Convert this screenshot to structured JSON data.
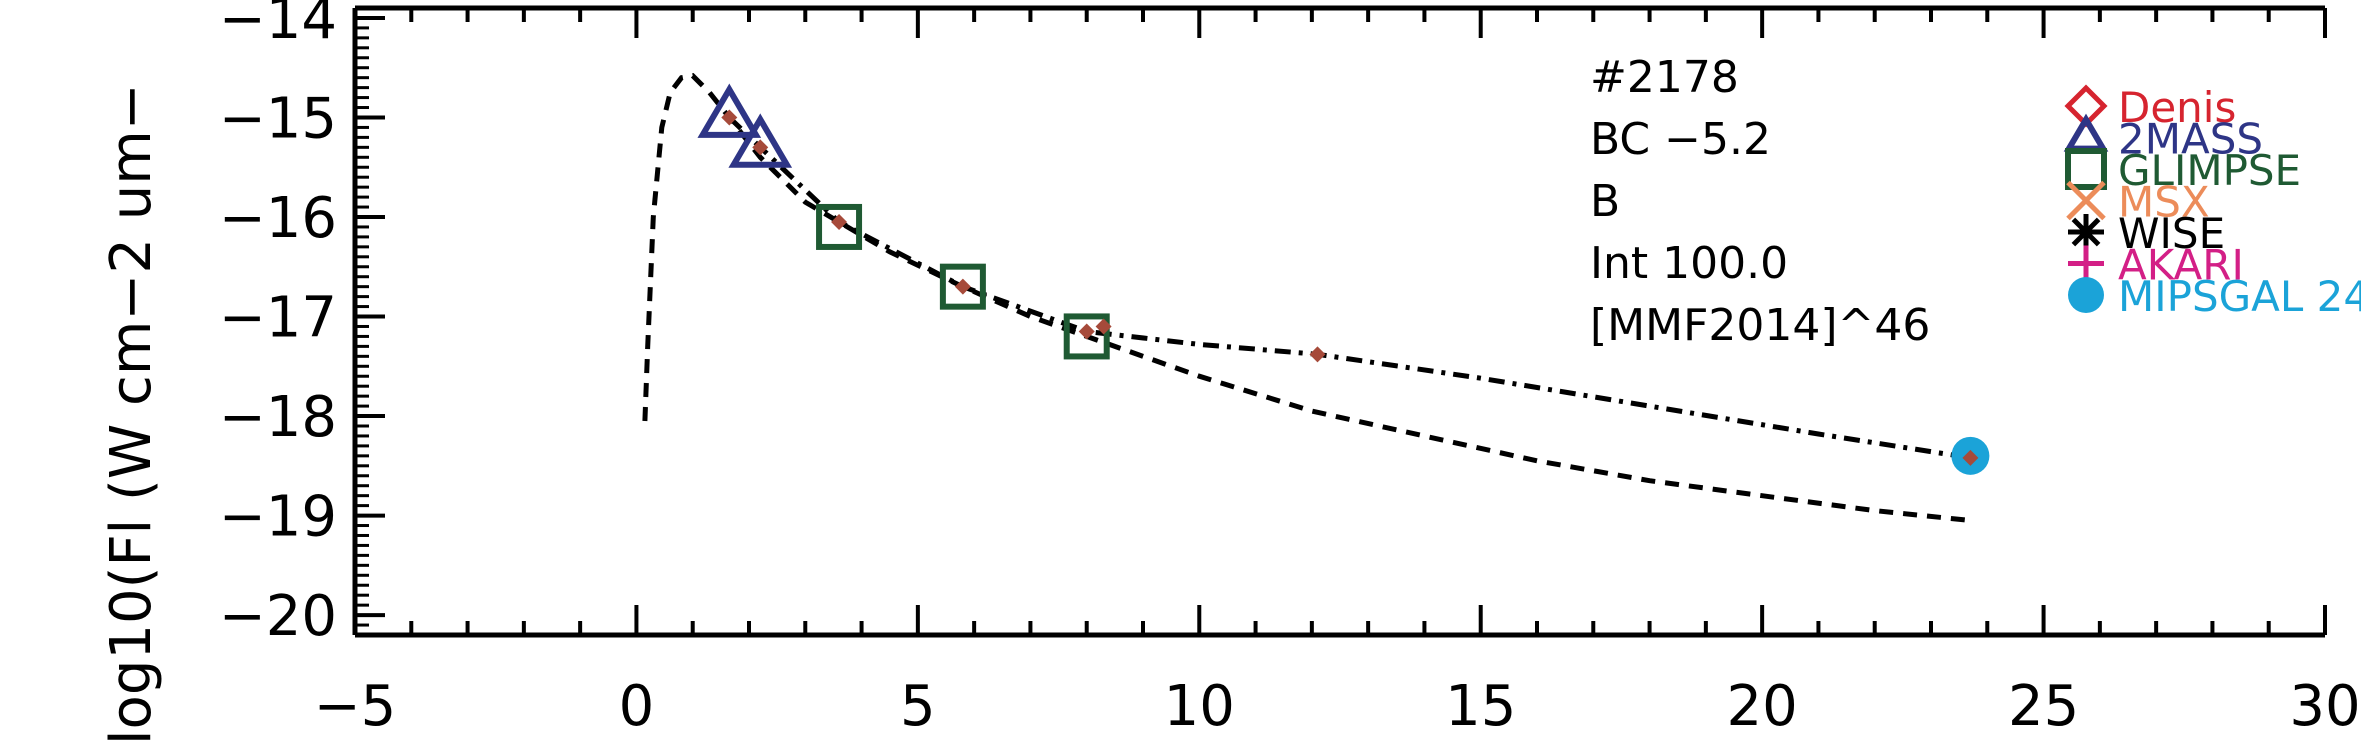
{
  "chart_data": {
    "type": "scatter",
    "title": "",
    "ylabel": "log10(Fl (W cm−2 um−",
    "xlabel": "",
    "xlim": [
      -5,
      30
    ],
    "ylim": [
      -20.2,
      -13.9
    ],
    "x_ticks": [
      -5,
      0,
      5,
      10,
      15,
      20,
      25,
      30
    ],
    "x_tick_labels": [
      "−5",
      "0",
      "5",
      "10",
      "15",
      "20",
      "25",
      "30"
    ],
    "y_ticks": [
      -20,
      -19,
      -18,
      -17,
      -16,
      -15,
      -14
    ],
    "y_tick_labels": [
      "−20",
      "−19",
      "−18",
      "−17",
      "−16",
      "−15",
      "−14"
    ],
    "grid": false,
    "annotations": [
      "#2178",
      "BC −5.2",
      "B",
      "Int 100.0",
      "[MMF2014]^46"
    ],
    "legend": {
      "placement": "top-right",
      "entries": [
        {
          "name": "Denis",
          "marker": "diamond",
          "color": "#d6242f"
        },
        {
          "name": "2MASS",
          "marker": "triangle",
          "color": "#2e3586"
        },
        {
          "name": "GLIMPSE",
          "marker": "square",
          "color": "#1f5a33"
        },
        {
          "name": "MSX",
          "marker": "x",
          "color": "#ec8c5a"
        },
        {
          "name": "WISE",
          "marker": "asterisk",
          "color": "#000000"
        },
        {
          "name": "AKARI",
          "marker": "plus",
          "color": "#d31f86"
        },
        {
          "name": "MIPSGAL 24",
          "marker": "circle",
          "color": "#1ba3d8"
        }
      ]
    },
    "series": [
      {
        "marker": "triangle",
        "color": "#2e3586",
        "x": [
          1.65,
          2.2
        ],
        "y": [
          -15.0,
          -15.3
        ]
      },
      {
        "marker": "square",
        "color": "#1f5a33",
        "x": [
          3.6,
          5.8,
          8.0
        ],
        "y": [
          -16.1,
          -16.7,
          -17.2
        ]
      },
      {
        "marker": "circle",
        "color": "#1ba3d8",
        "x": [
          23.7
        ],
        "y": [
          -18.4
        ]
      },
      {
        "marker": "small-diamond",
        "color": "#a64a3a",
        "x": [
          1.65,
          2.2,
          3.6,
          5.8,
          8.0,
          8.3,
          12.1,
          23.7
        ],
        "y": [
          -15.0,
          -15.3,
          -16.05,
          -16.7,
          -17.15,
          -17.1,
          -17.38,
          -18.42
        ]
      }
    ],
    "curves": [
      {
        "style": "dashed",
        "color": "#000000",
        "x": [
          0.15,
          0.2,
          0.3,
          0.45,
          0.6,
          0.8,
          1.0,
          1.3,
          1.65,
          2.2,
          3.0,
          3.6,
          4.5,
          5.8,
          7.0,
          8.0,
          10.0,
          12.0,
          14.0,
          16.0,
          18.0,
          20.0,
          22.0,
          23.7
        ],
        "y": [
          -18.05,
          -17.3,
          -16.0,
          -15.1,
          -14.75,
          -14.6,
          -14.58,
          -14.75,
          -15.0,
          -15.4,
          -15.85,
          -16.05,
          -16.35,
          -16.7,
          -17.0,
          -17.2,
          -17.6,
          -17.95,
          -18.2,
          -18.45,
          -18.65,
          -18.8,
          -18.95,
          -19.05
        ]
      },
      {
        "style": "dash-dot",
        "color": "#000000",
        "x": [
          1.65,
          2.2,
          3.6,
          5.8,
          8.0,
          10.0,
          12.1,
          15.0,
          18.0,
          21.0,
          23.7
        ],
        "y": [
          -15.0,
          -15.3,
          -16.05,
          -16.7,
          -17.15,
          -17.28,
          -17.38,
          -17.62,
          -17.9,
          -18.18,
          -18.42
        ]
      }
    ]
  }
}
